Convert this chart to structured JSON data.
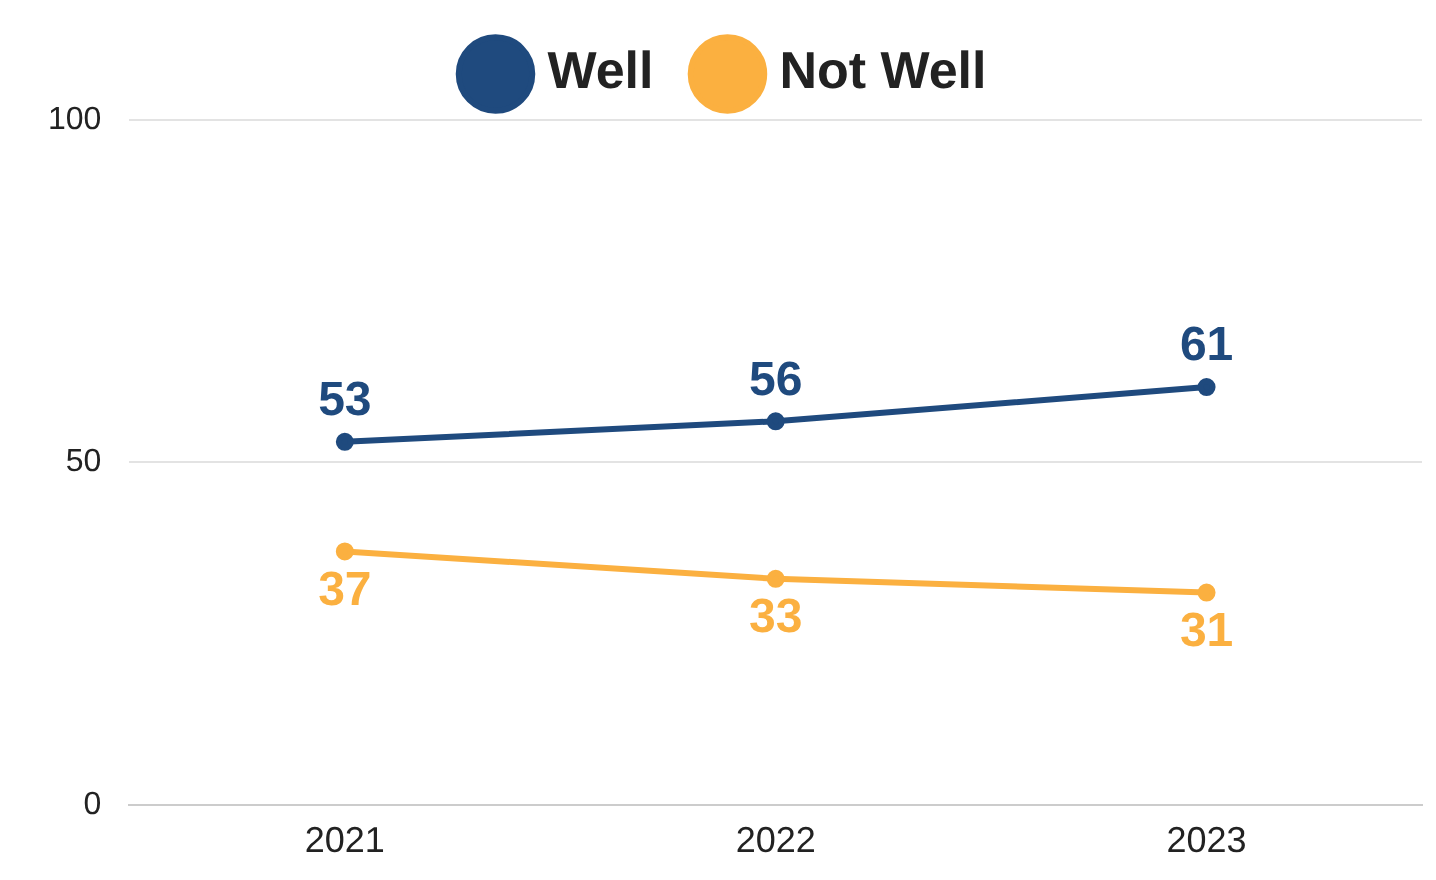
{
  "chart_data": {
    "type": "line",
    "categories": [
      "2021",
      "2022",
      "2023"
    ],
    "series": [
      {
        "name": "Well",
        "color": "#1f4a7e",
        "values": [
          53,
          56,
          61
        ]
      },
      {
        "name": "Not Well",
        "color": "#fbb040",
        "values": [
          37,
          33,
          31
        ]
      }
    ],
    "ylim": [
      0,
      100
    ],
    "yticks": [
      0,
      50,
      100
    ],
    "grid": "y",
    "legend": "top",
    "marker": "circle",
    "line_style": "solid",
    "data_labels": true
  }
}
